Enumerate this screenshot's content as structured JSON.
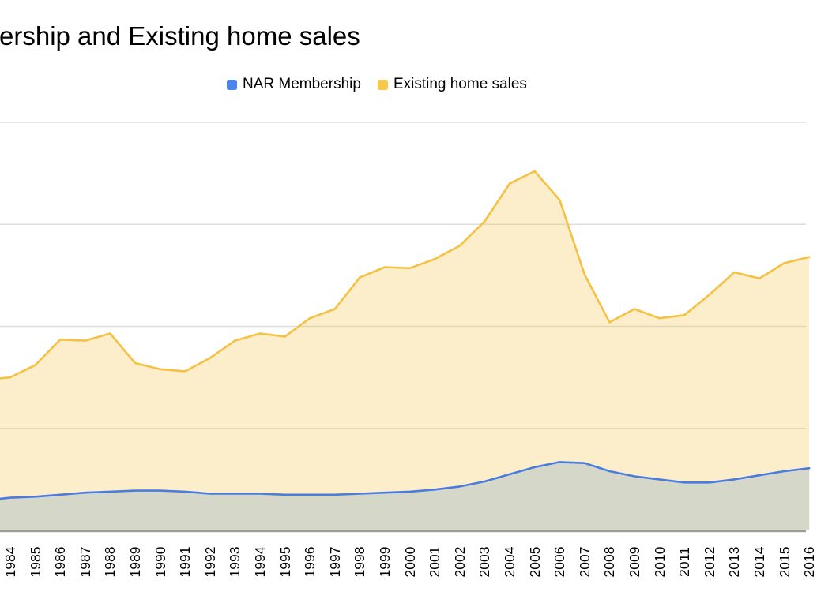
{
  "title": "ership and Existing home sales",
  "title_note": "chart is cropped at the left edge; title text begins mid-word",
  "legend": {
    "position": "top",
    "items": [
      {
        "label": "NAR Membership",
        "slug": "nar-membership",
        "swatch_color": "#4c83ec"
      },
      {
        "label": "Existing home sales",
        "slug": "existing-home-sales",
        "swatch_color": "#f7c94b"
      }
    ]
  },
  "colors": {
    "background": "#ffffff",
    "text": "#000000",
    "gridline": "#dedede",
    "axis_line": "#9b9d97",
    "membership_line": "#4a7ce0",
    "membership_area_composite": "#d5d8cc",
    "sales_line": "#f5c142",
    "sales_area_composite": "#fcf0d1"
  },
  "chart_data": {
    "type": "area",
    "title": "ership and Existing home sales",
    "xlabel": "",
    "ylabel": "",
    "legend_position": "top",
    "grid": true,
    "x": [
      1984,
      1985,
      1986,
      1987,
      1988,
      1989,
      1990,
      1991,
      1992,
      1993,
      1994,
      1995,
      1996,
      1997,
      1998,
      1999,
      2000,
      2001,
      2002,
      2003,
      2004,
      2005,
      2006,
      2007,
      2008,
      2009,
      2010,
      2011,
      2012,
      2013,
      2014,
      2015,
      2016
    ],
    "x_note": "last label (2016) is partially clipped by the right edge of the frame",
    "y_axis": {
      "labels_visible": false,
      "units": "gridline intervals above baseline (value-axis labels are cropped out of frame)",
      "gridline_values": [
        1,
        2,
        3,
        4
      ],
      "ylim": [
        0,
        4.0
      ]
    },
    "series": [
      {
        "name": "NAR Membership",
        "slug": "nar-membership",
        "line_color": "#4a7ce0",
        "fill": "rgba(141,171,195,0.35)",
        "edge_value": 0.31,
        "values": [
          0.32,
          0.33,
          0.35,
          0.37,
          0.38,
          0.39,
          0.39,
          0.38,
          0.36,
          0.36,
          0.36,
          0.35,
          0.35,
          0.35,
          0.36,
          0.37,
          0.38,
          0.4,
          0.43,
          0.48,
          0.55,
          0.62,
          0.67,
          0.66,
          0.58,
          0.53,
          0.5,
          0.47,
          0.47,
          0.5,
          0.54,
          0.58,
          0.61
        ]
      },
      {
        "name": "Existing home sales",
        "slug": "existing-home-sales",
        "line_color": "#f5c142",
        "fill": "rgba(246,195,70,0.28)",
        "edge_value": 1.49,
        "values": [
          1.5,
          1.62,
          1.87,
          1.86,
          1.93,
          1.64,
          1.58,
          1.56,
          1.69,
          1.86,
          1.93,
          1.9,
          2.08,
          2.17,
          2.48,
          2.58,
          2.57,
          2.66,
          2.79,
          3.03,
          3.4,
          3.52,
          3.24,
          2.51,
          2.04,
          2.17,
          2.08,
          2.11,
          2.31,
          2.53,
          2.47,
          2.62,
          2.68
        ]
      }
    ]
  }
}
